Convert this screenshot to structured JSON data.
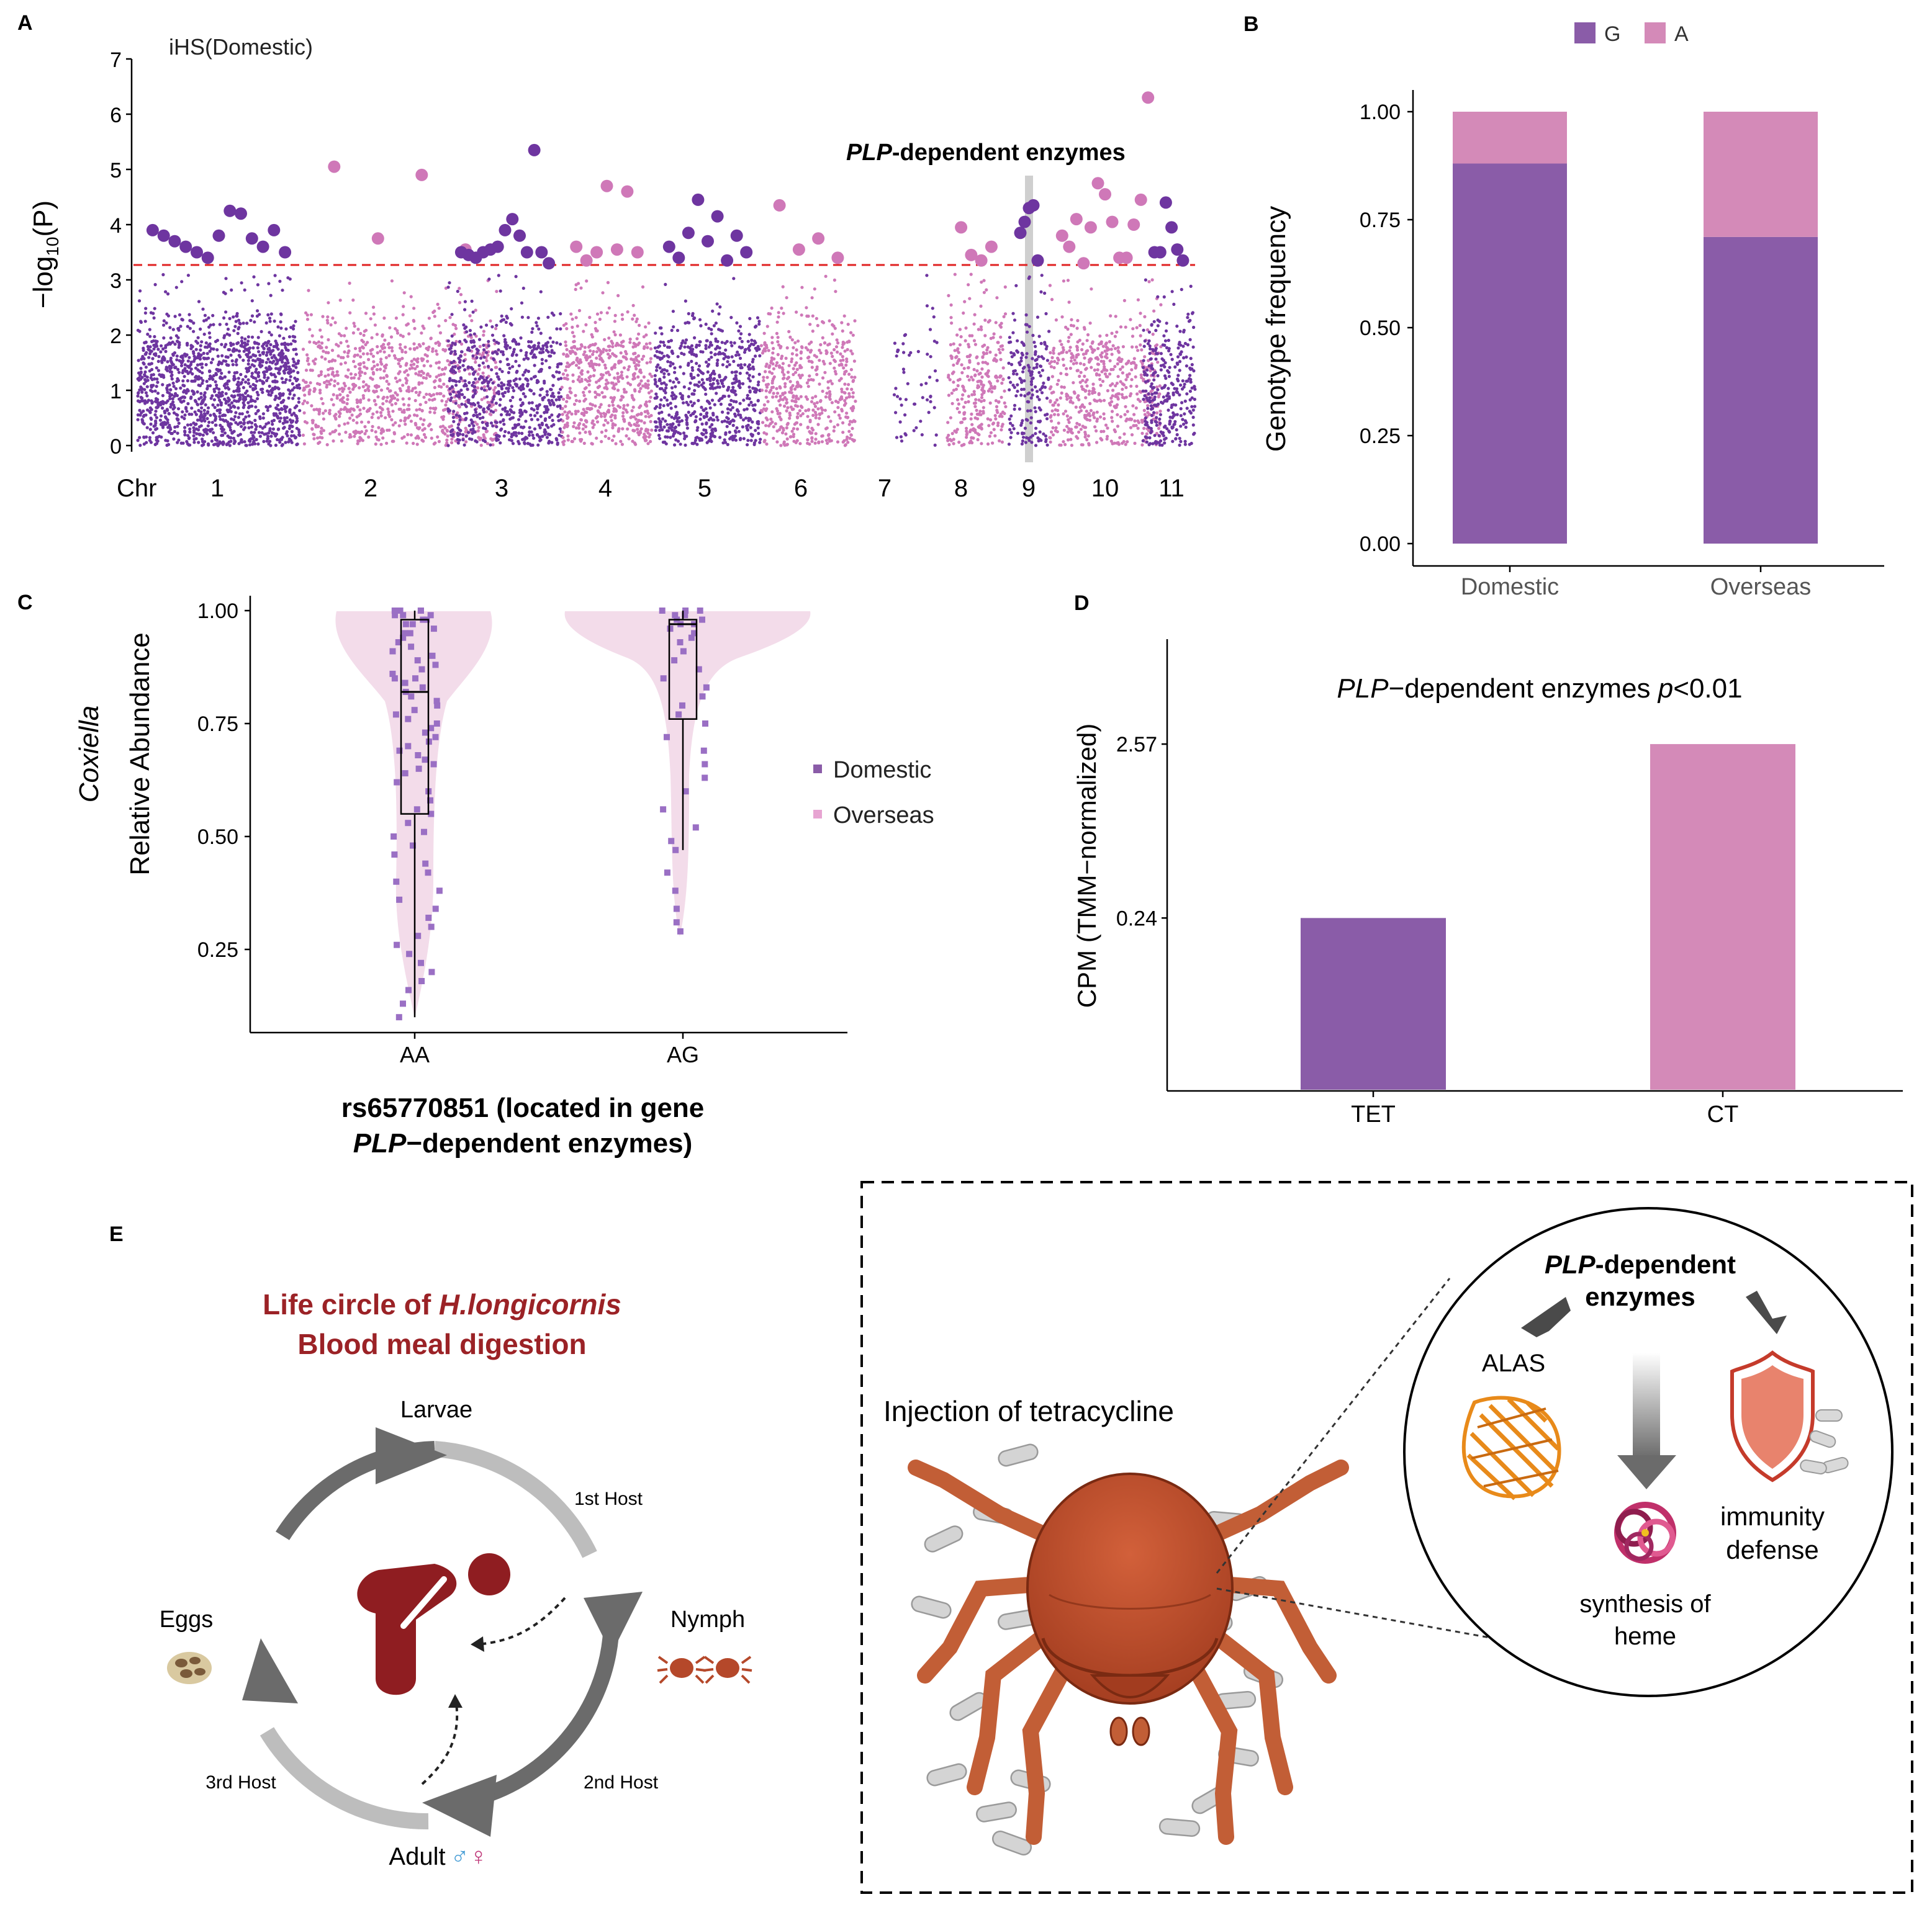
{
  "colors": {
    "purple": "#8a5ca8",
    "pink": "#d48ab8",
    "manhattan_purple": "#6e35a0",
    "manhattan_pink": "#cf78b8",
    "threshold": "#e02020",
    "lifecycle_red": "#9b2226",
    "arrow_gray": "#6b6b6b",
    "tick_orange": "#b5482a",
    "male_blue": "#4a9fd6",
    "female_pink": "#c03a7a"
  },
  "panel_labels": {
    "a": "A",
    "b": "B",
    "c": "C",
    "d": "D",
    "e": "E"
  },
  "chart_data": [
    {
      "id": "A",
      "type": "scatter",
      "subtype": "manhattan",
      "title": "iHS(Domestic)",
      "ylabel_prefix": "−log",
      "ylabel_sub": "10",
      "ylabel_suffix": "(P)",
      "yticks": [
        "0",
        "1",
        "2",
        "3",
        "4",
        "5",
        "6",
        "7"
      ],
      "ylim": [
        0,
        7
      ],
      "x_prefix": "Chr",
      "chromosomes": [
        "1",
        "2",
        "3",
        "4",
        "5",
        "6",
        "7",
        "8",
        "9",
        "10",
        "11"
      ],
      "threshold": 3.3,
      "highlight_chromosome": "9",
      "annotation_bold": "PLP",
      "annotation_rest": "-dependent enzymes",
      "significant_points": [
        {
          "chr": "1",
          "values": [
            3.9,
            3.8,
            3.7,
            3.6,
            3.5,
            3.4,
            3.8,
            4.25,
            4.2,
            3.75,
            3.6,
            3.9,
            3.5
          ]
        },
        {
          "chr": "2",
          "values": [
            5.05,
            3.75,
            4.9,
            3.55
          ]
        },
        {
          "chr": "3",
          "values": [
            3.5,
            3.45,
            3.4,
            3.5,
            3.55,
            3.6,
            3.9,
            4.1,
            3.8,
            3.5,
            5.35,
            3.5,
            3.3
          ]
        },
        {
          "chr": "4",
          "values": [
            3.6,
            3.35,
            3.5,
            4.7,
            3.55,
            4.6,
            3.5
          ]
        },
        {
          "chr": "5",
          "values": [
            3.6,
            3.4,
            3.85,
            4.45,
            3.7,
            4.15,
            3.35,
            3.8,
            3.5
          ]
        },
        {
          "chr": "6",
          "values": [
            4.35,
            3.55,
            3.75,
            3.4
          ]
        },
        {
          "chr": "8",
          "values": [
            3.95,
            3.45,
            3.35,
            3.6
          ]
        },
        {
          "chr": "9",
          "values": [
            3.85,
            4.05,
            4.3,
            4.35,
            3.35
          ]
        },
        {
          "chr": "10",
          "values": [
            3.8,
            3.6,
            4.1,
            3.3,
            3.95,
            4.75,
            4.55,
            4.05,
            3.4,
            3.4,
            4.0,
            4.45,
            6.3
          ]
        },
        {
          "chr": "11",
          "values": [
            3.5,
            3.5,
            4.4,
            3.95,
            3.55,
            3.35
          ]
        }
      ]
    },
    {
      "id": "B",
      "type": "bar",
      "stacked": true,
      "categories": [
        "Domestic",
        "Overseas"
      ],
      "series": [
        {
          "name": "G",
          "values": [
            0.88,
            0.71
          ]
        },
        {
          "name": "A",
          "values": [
            0.12,
            0.29
          ]
        }
      ],
      "ylabel": "Genotype frequency",
      "yticks": [
        "0.00",
        "0.25",
        "0.50",
        "0.75",
        "1.00"
      ],
      "ylim": [
        0,
        1
      ]
    },
    {
      "id": "C",
      "type": "scatter",
      "subtype": "violin-box",
      "categories": [
        "AA",
        "AG"
      ],
      "ylabel_italic": "Coxiella",
      "ylabel": "Relative Abundance",
      "yticks": [
        "0.25",
        "0.50",
        "0.75",
        "1.00"
      ],
      "ylim": [
        0.07,
        1.02
      ],
      "box": [
        {
          "category": "AA",
          "min": 0.1,
          "q1": 0.55,
          "median": 0.82,
          "q3": 0.98,
          "max": 1.0
        },
        {
          "category": "AG",
          "min": 0.47,
          "q1": 0.76,
          "median": 0.97,
          "q3": 0.98,
          "max": 1.0
        }
      ],
      "legend": [
        {
          "name": "Domestic"
        },
        {
          "name": "Overseas"
        }
      ],
      "xlabel_line1": "rs65770851 (located in gene",
      "xlabel_line2_italic": "PLP",
      "xlabel_line2_rest": "−dependent enzymes)",
      "points_AA": [
        1.0,
        1.0,
        1.0,
        1.0,
        0.99,
        0.99,
        0.99,
        0.98,
        0.98,
        0.97,
        0.97,
        0.96,
        0.95,
        0.95,
        0.94,
        0.93,
        0.92,
        0.91,
        0.9,
        0.89,
        0.88,
        0.87,
        0.86,
        0.85,
        0.85,
        0.84,
        0.83,
        0.82,
        0.81,
        0.8,
        0.79,
        0.78,
        0.77,
        0.76,
        0.75,
        0.74,
        0.73,
        0.72,
        0.71,
        0.7,
        0.69,
        0.68,
        0.67,
        0.66,
        0.65,
        0.64,
        0.62,
        0.6,
        0.58,
        0.56,
        0.55,
        0.53,
        0.51,
        0.5,
        0.48,
        0.46,
        0.44,
        0.42,
        0.4,
        0.38,
        0.36,
        0.34,
        0.32,
        0.3,
        0.28,
        0.26,
        0.24,
        0.22,
        0.2,
        0.18,
        0.16,
        0.13,
        0.1
      ],
      "points_AG": [
        1.0,
        1.0,
        1.0,
        0.99,
        0.99,
        0.98,
        0.98,
        0.97,
        0.97,
        0.96,
        0.95,
        0.94,
        0.93,
        0.91,
        0.89,
        0.87,
        0.85,
        0.83,
        0.81,
        0.79,
        0.77,
        0.75,
        0.72,
        0.69,
        0.66,
        0.63,
        0.6,
        0.56,
        0.52,
        0.49,
        0.47,
        0.42,
        0.38,
        0.34,
        0.31,
        0.29
      ]
    },
    {
      "id": "D",
      "type": "bar",
      "categories": [
        "TET",
        "CT"
      ],
      "values": [
        0.24,
        2.57
      ],
      "bar_heights_relative": [
        0.38,
        0.765
      ],
      "ylabel": "CPM (TMM−normalized)",
      "yticks": [
        "0.24",
        "2.57"
      ],
      "title_italic_1": "PLP",
      "title_mid": "−dependent enzymes ",
      "title_italic_2": "p",
      "title_end": "<0.01"
    }
  ],
  "panel_e": {
    "title_line1_prefix": "Life circle of ",
    "title_line1_italic": "H.longicornis",
    "title_line2": "Blood meal digestion",
    "stages": {
      "larvae": "Larvae",
      "nymph": "Nymph",
      "adult": "Adult",
      "eggs": "Eggs"
    },
    "male_symbol": "♂",
    "female_symbol": "♀",
    "hosts": {
      "first": "1st Host",
      "second": "2nd Host",
      "third": "3rd Host"
    },
    "injection": "Injection of tetracycline",
    "enzyme_bold_italic": "PLP",
    "enzyme_bold": "-dependent",
    "enzyme_line2": "enzymes",
    "alas": "ALAS",
    "heme_line1": "synthesis of",
    "heme_line2": "heme",
    "immunity_line1": "immunity",
    "immunity_line2": "defense"
  }
}
